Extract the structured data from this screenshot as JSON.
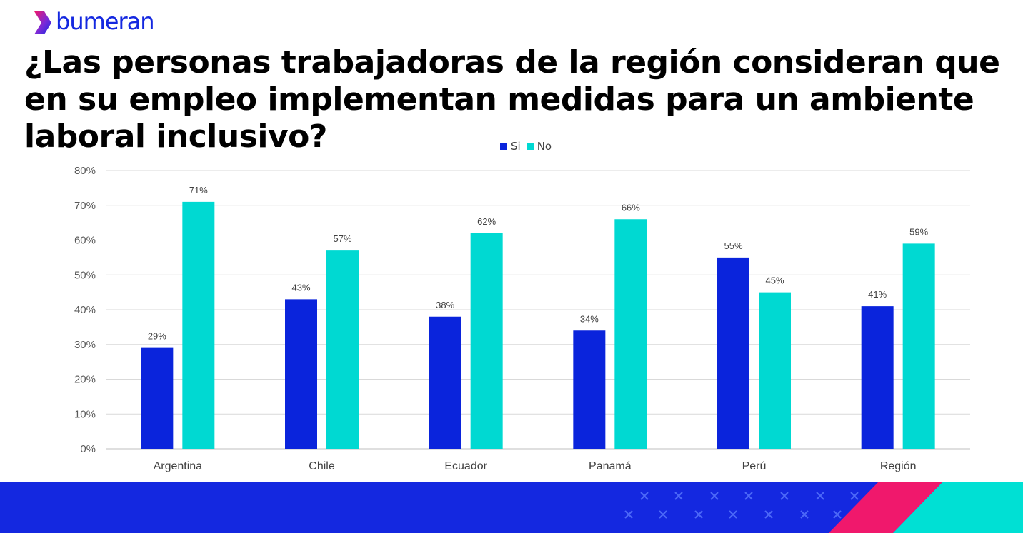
{
  "brand": {
    "name": "bumeran"
  },
  "colors": {
    "brand": "#1428e0",
    "si": "#0a24dc",
    "no": "#00d9d2",
    "footer_pink": "#f0186c",
    "footer_cyan": "#00e0d4"
  },
  "chart_data": {
    "type": "bar",
    "title": "¿Las personas trabajadoras de la región consideran que en su empleo implementan medidas para un ambiente laboral inclusivo?",
    "categories": [
      "Argentina",
      "Chile",
      "Ecuador",
      "Panamá",
      "Perú",
      "Región"
    ],
    "series": [
      {
        "name": "Si",
        "values": [
          29,
          43,
          38,
          34,
          55,
          41
        ]
      },
      {
        "name": "No",
        "values": [
          71,
          57,
          62,
          66,
          45,
          59
        ]
      }
    ],
    "value_labels": {
      "Si": [
        "29%",
        "43%",
        "38%",
        "34%",
        "55%",
        "41%"
      ],
      "No": [
        "71%",
        "57%",
        "62%",
        "66%",
        "45%",
        "59%"
      ]
    },
    "yticks": [
      "0%",
      "10%",
      "20%",
      "30%",
      "40%",
      "50%",
      "60%",
      "70%",
      "80%"
    ],
    "ylim": [
      0,
      80
    ],
    "grid": true,
    "legend_position": "top-center"
  }
}
